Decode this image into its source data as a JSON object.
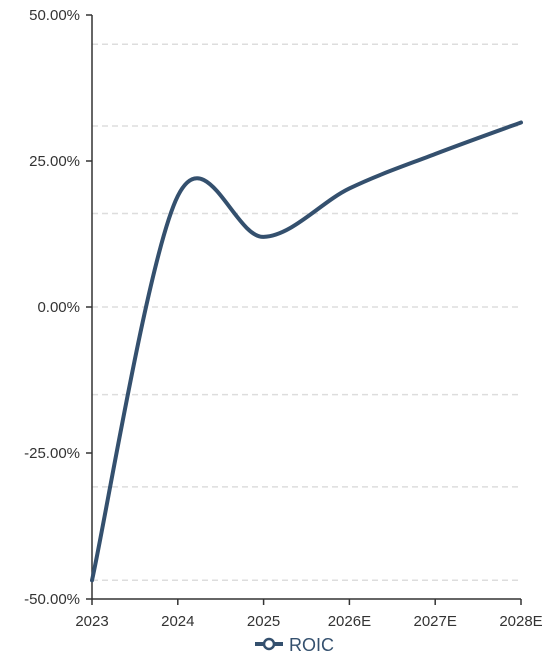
{
  "chart_data": {
    "type": "line",
    "categories": [
      "2023",
      "2024",
      "2025",
      "2026E",
      "2027E",
      "2028E"
    ],
    "series": [
      {
        "name": "ROIC",
        "values": [
          -46.8,
          19.0,
          12.0,
          20.3,
          26.2,
          31.6
        ]
      }
    ],
    "ylim": [
      -50,
      50
    ],
    "yticks": [
      -50,
      -25,
      0,
      25,
      50
    ],
    "ytick_labels": [
      "-50.00%",
      "-25.00%",
      "0.00%",
      "25.00%",
      "50.00%"
    ],
    "grid": "horizontal dashed",
    "legend": "bottom-center",
    "colors": {
      "line": "#34506e",
      "grid": "#dddddd",
      "axis": "#333333"
    }
  },
  "legend": {
    "label": "ROIC"
  }
}
